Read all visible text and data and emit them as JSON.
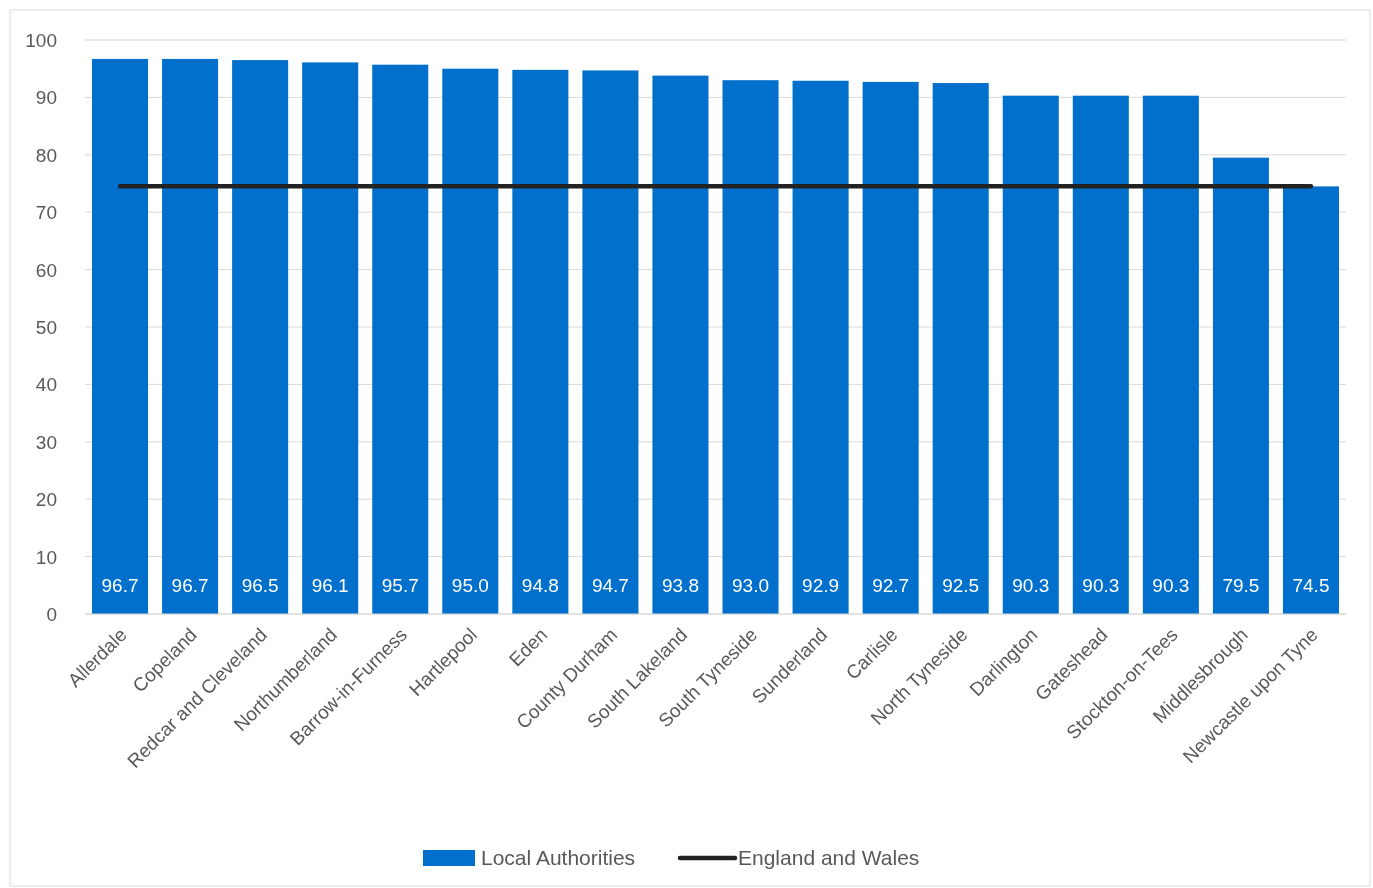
{
  "chart_data": {
    "type": "bar",
    "categories": [
      "Allerdale",
      "Copeland",
      "Redcar and Cleveland",
      "Northumberland",
      "Barrow-in-Furness",
      "Hartlepool",
      "Eden",
      "County Durham",
      "South Lakeland",
      "South Tyneside",
      "Sunderland",
      "Carlisle",
      "North Tyneside",
      "Darlington",
      "Gateshead",
      "Stockton-on-Tees",
      "Middlesbrough",
      "Newcastle upon Tyne"
    ],
    "series": [
      {
        "name": "Local Authorities",
        "color": "#0070cc",
        "values": [
          96.7,
          96.7,
          96.5,
          96.1,
          95.7,
          95.0,
          94.8,
          94.7,
          93.8,
          93.0,
          92.9,
          92.7,
          92.5,
          90.3,
          90.3,
          90.3,
          79.5,
          74.5
        ],
        "value_labels": [
          "96.7",
          "96.7",
          "96.5",
          "96.1",
          "95.7",
          "95.0",
          "94.8",
          "94.7",
          "93.8",
          "93.0",
          "92.9",
          "92.7",
          "92.5",
          "90.3",
          "90.3",
          "90.3",
          "79.5",
          "74.5"
        ]
      },
      {
        "name": "England and Wales",
        "type": "line",
        "color": "#222222",
        "values": [
          74.5,
          74.5,
          74.5,
          74.5,
          74.5,
          74.5,
          74.5,
          74.5,
          74.5,
          74.5,
          74.5,
          74.5,
          74.5,
          74.5,
          74.5,
          74.5,
          74.5,
          74.5
        ]
      }
    ],
    "ylim": [
      0,
      100
    ],
    "yticks": [
      0,
      10,
      20,
      30,
      40,
      50,
      60,
      70,
      80,
      90,
      100
    ],
    "grid": "y",
    "legend": "bottom"
  }
}
